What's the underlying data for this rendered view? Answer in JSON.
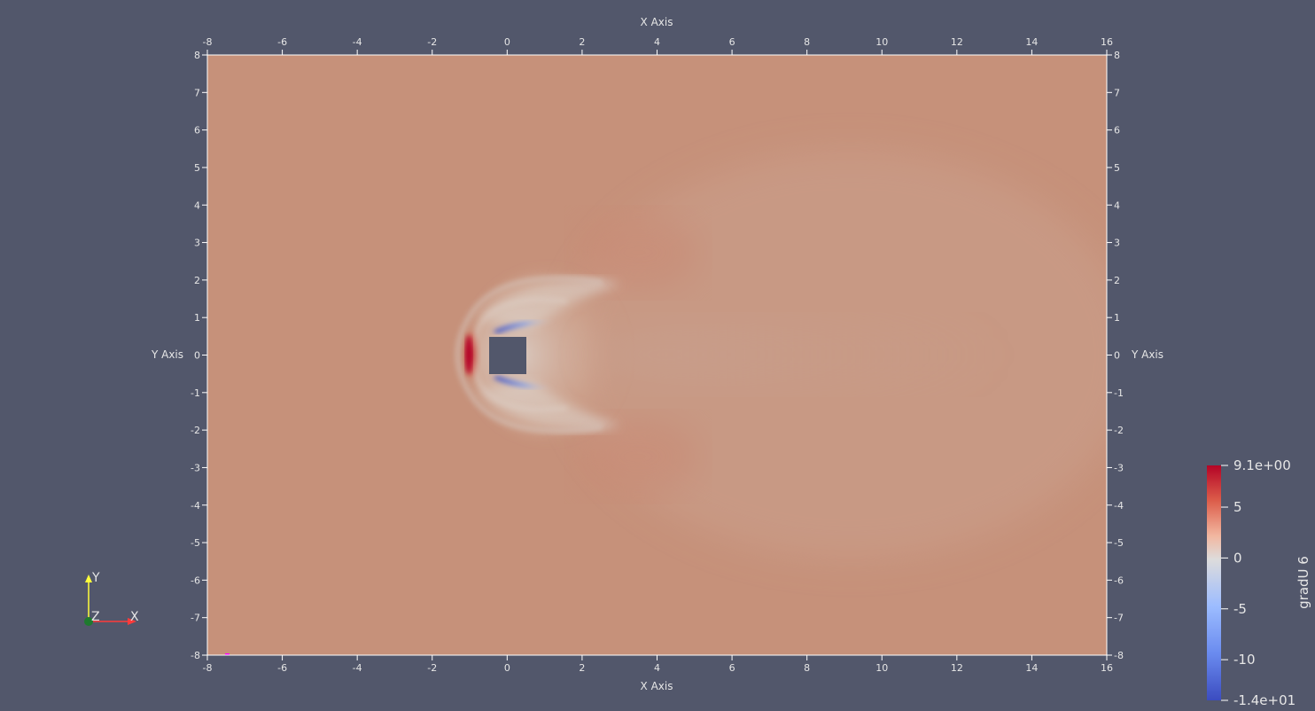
{
  "axes": {
    "x_title": "X Axis",
    "y_title": "Y Axis",
    "x_ticks": [
      "-8",
      "-6",
      "-4",
      "-2",
      "0",
      "2",
      "4",
      "6",
      "8",
      "10",
      "12",
      "14",
      "16"
    ],
    "y_ticks": [
      "8",
      "7",
      "6",
      "5",
      "4",
      "3",
      "2",
      "1",
      "0",
      "-1",
      "-2",
      "-3",
      "-4",
      "-5",
      "-6",
      "-7",
      "-8"
    ],
    "x_range": [
      -8,
      16
    ],
    "y_range": [
      -8,
      8
    ]
  },
  "colorbar": {
    "title": "gradU 6",
    "max_label": "9.1e+00",
    "min_label": "-1.4e+01",
    "tick_labels": [
      "5",
      "0",
      "-5",
      "-10"
    ],
    "range": [
      -14,
      9.1
    ],
    "colormap": "Cool to Warm"
  },
  "orientation_axes": {
    "x_label": "X",
    "y_label": "Y",
    "z_label": "Z",
    "colors": {
      "x": "#ff3b3b",
      "y": "#ffff3b",
      "z": "#1e7a2e"
    }
  },
  "colors": {
    "background": "#52576b",
    "field_base": "#c6917a",
    "obstacle": "#52576b"
  }
}
